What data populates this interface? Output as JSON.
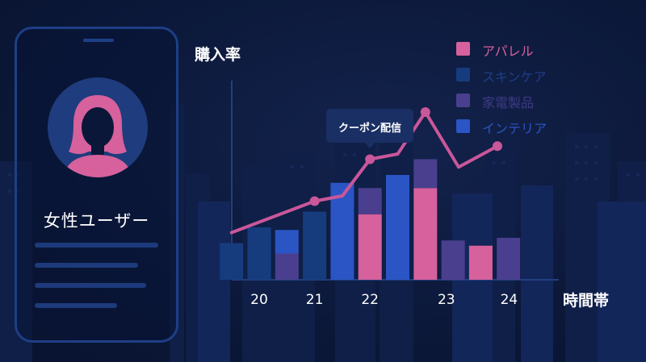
{
  "user": {
    "label": "女性ユーザー",
    "icon": "female-user-icon"
  },
  "callout": {
    "text": "クーポン配信",
    "at": 22
  },
  "chart_data": {
    "type": "bar",
    "ylabel": "購入率",
    "xlabel": "時間帯",
    "x_ticks": [
      20,
      21,
      22,
      23,
      24
    ],
    "categories": [
      19.5,
      20,
      20.5,
      21,
      21.5,
      22,
      22.5,
      23,
      23.5,
      24,
      24.5
    ],
    "series": [
      {
        "name": "アパレル",
        "color": "#d6619c",
        "values": [
          0,
          0,
          0,
          0,
          0,
          25,
          0,
          35,
          0,
          13,
          0
        ]
      },
      {
        "name": "スキンケア",
        "color": "#163c7e",
        "values": [
          14,
          20,
          0,
          26,
          0,
          0,
          0,
          0,
          0,
          0,
          0
        ]
      },
      {
        "name": "家電製品",
        "color": "#4a3f8e",
        "values": [
          0,
          0,
          10,
          0,
          0,
          10,
          0,
          11,
          15,
          0,
          16
        ]
      },
      {
        "name": "インテリア",
        "color": "#2b55c4",
        "values": [
          0,
          0,
          9,
          0,
          37,
          0,
          40,
          0,
          0,
          0,
          0
        ]
      }
    ],
    "line": {
      "color": "#c9579a",
      "x": [
        19.5,
        21,
        21.5,
        22,
        22.5,
        23,
        23.6,
        24.3
      ],
      "y": [
        18,
        30,
        32,
        46,
        48,
        64,
        43,
        51
      ]
    },
    "colors": {
      "background": "#0b1839",
      "axis": "#233e7e",
      "text": "#ffffff"
    }
  }
}
